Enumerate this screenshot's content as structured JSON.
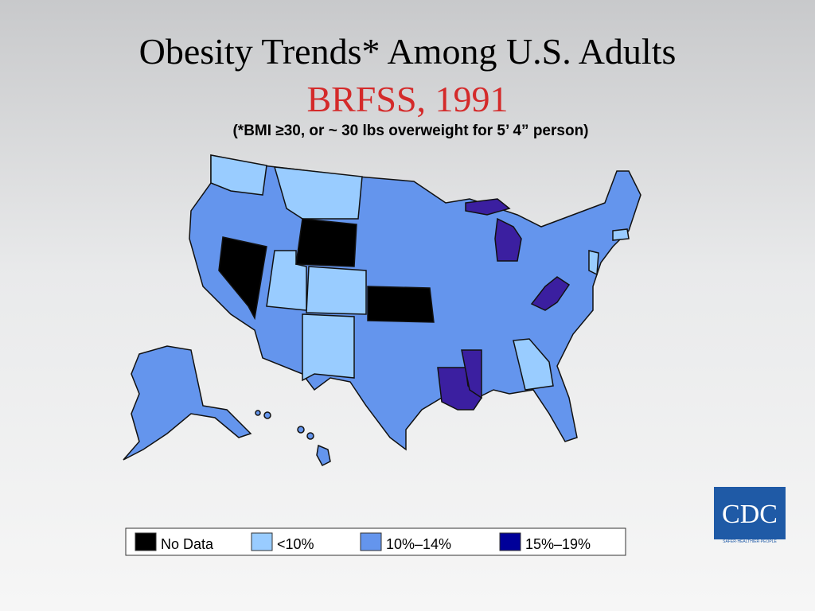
{
  "title": "Obesity Trends* Among U.S. Adults",
  "subtitle": "BRFSS, 1991",
  "note": "(*BMI ≥30, or ~ 30 lbs overweight for 5’ 4” person)",
  "legend": [
    {
      "label": "No Data",
      "color": "#000000"
    },
    {
      "label": "<10%",
      "color": "#99ccff"
    },
    {
      "label": "10%–14%",
      "color": "#6495ed"
    },
    {
      "label": "15%–19%",
      "color": "#000099"
    }
  ],
  "logo": {
    "text": "CDC",
    "tagline": "SAFER·HEALTHIER·PEOPLE"
  }
}
